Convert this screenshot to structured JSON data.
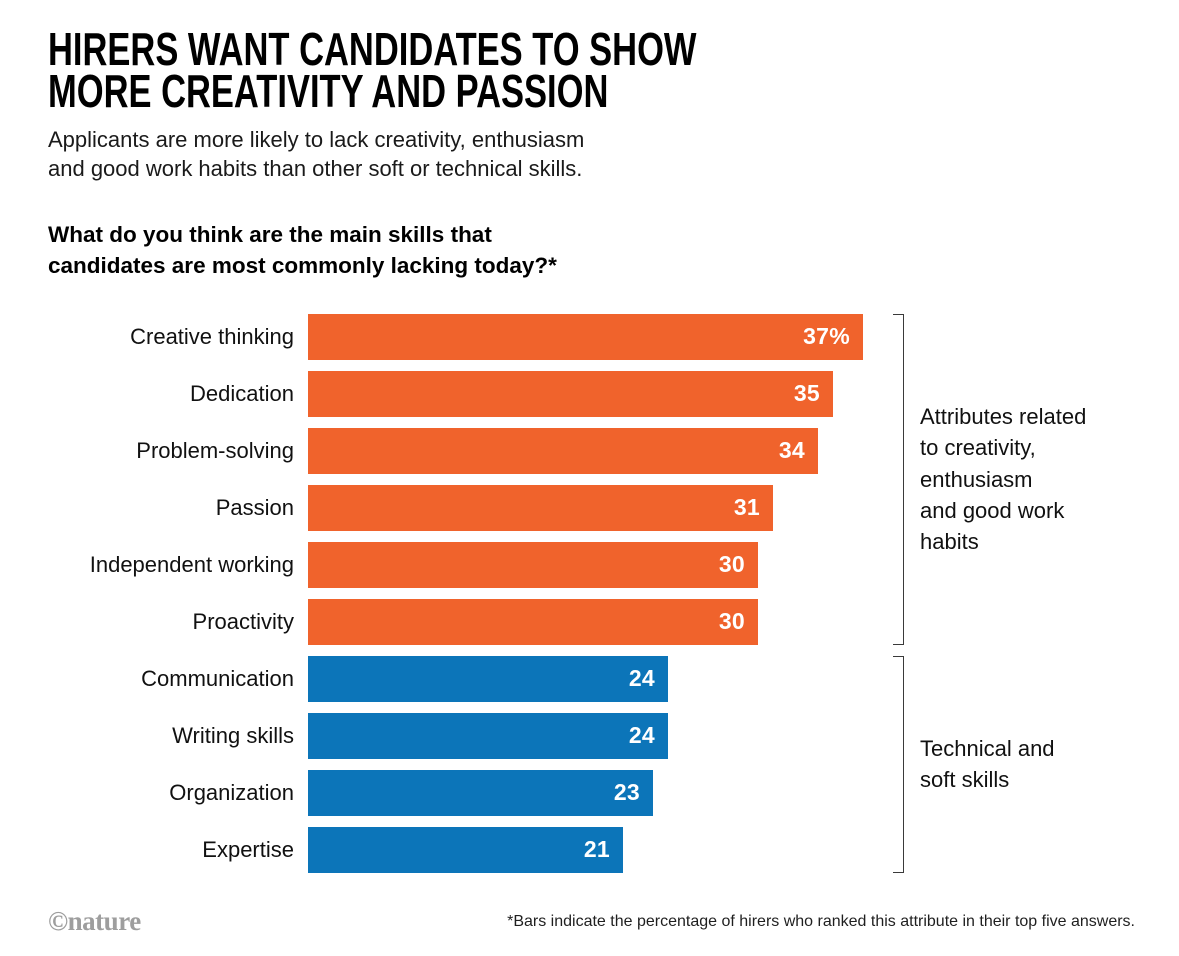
{
  "header": {
    "title_lines": [
      "HIRERS WANT CANDIDATES TO SHOW",
      "MORE CREATIVITY AND PASSION"
    ],
    "subtitle_lines": [
      "Applicants are more likely to lack creativity, enthusiasm",
      "and good work habits than other soft or technical skills."
    ],
    "question_lines": [
      "What do you think are the main skills that",
      "candidates are most commonly lacking today?*"
    ]
  },
  "chart_data": {
    "type": "bar",
    "orientation": "horizontal",
    "title": "What do you think are the main skills that candidates are most commonly lacking today?*",
    "categories": [
      "Creative thinking",
      "Dedication",
      "Problem-solving",
      "Passion",
      "Independent working",
      "Proactivity",
      "Communication",
      "Writing skills",
      "Organization",
      "Expertise"
    ],
    "values": [
      37,
      35,
      34,
      31,
      30,
      30,
      24,
      24,
      23,
      21
    ],
    "display_values": [
      "37%",
      "35",
      "34",
      "31",
      "30",
      "30",
      "24",
      "24",
      "23",
      "21"
    ],
    "group_of": [
      0,
      0,
      0,
      0,
      0,
      0,
      1,
      1,
      1,
      1
    ],
    "groups": [
      {
        "name": "creativity-enthusiasm-work-habits",
        "color": "#F0632C",
        "label_lines": [
          "Attributes related",
          "to creativity,",
          "enthusiasm",
          "and good work",
          "habits"
        ]
      },
      {
        "name": "technical-and-soft-skills",
        "color": "#0C75B9",
        "label_lines": [
          "Technical and",
          "soft skills"
        ]
      }
    ],
    "xlim": [
      0,
      40
    ],
    "value_unit": "%",
    "grid": false,
    "legend_position": "right-brackets"
  },
  "footer": {
    "footnote": "*Bars indicate the percentage of hirers who ranked this attribute in their top five answers.",
    "credit": "©nature"
  }
}
